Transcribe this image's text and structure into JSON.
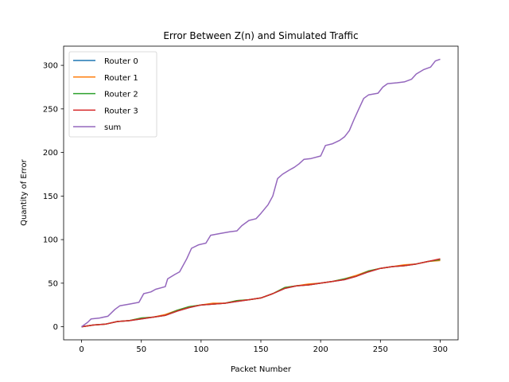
{
  "chart_data": {
    "type": "line",
    "title": "Error Between Z(n) and Simulated Traffic",
    "xlabel": "Packet Number",
    "ylabel": "Quantity of Error",
    "xlim": [
      -15,
      315
    ],
    "ylim": [
      -15,
      322
    ],
    "xticks": [
      0,
      50,
      100,
      150,
      200,
      250,
      300
    ],
    "yticks": [
      0,
      50,
      100,
      150,
      200,
      250,
      300
    ],
    "grid": false,
    "legend_position": "upper-left",
    "series": [
      {
        "name": "Router 0",
        "color": "#1f77b4",
        "points": [
          [
            0,
            0
          ],
          [
            10,
            2
          ],
          [
            20,
            3
          ],
          [
            30,
            6
          ],
          [
            40,
            7
          ],
          [
            50,
            9
          ],
          [
            60,
            11
          ],
          [
            70,
            13
          ],
          [
            80,
            18
          ],
          [
            90,
            22
          ],
          [
            100,
            25
          ],
          [
            110,
            26
          ],
          [
            120,
            27
          ],
          [
            130,
            29
          ],
          [
            140,
            31
          ],
          [
            150,
            33
          ],
          [
            160,
            38
          ],
          [
            170,
            44
          ],
          [
            180,
            47
          ],
          [
            190,
            48
          ],
          [
            200,
            50
          ],
          [
            210,
            52
          ],
          [
            220,
            54
          ],
          [
            230,
            58
          ],
          [
            240,
            63
          ],
          [
            250,
            67
          ],
          [
            260,
            69
          ],
          [
            270,
            70
          ],
          [
            280,
            72
          ],
          [
            290,
            75
          ],
          [
            300,
            77
          ]
        ]
      },
      {
        "name": "Router 1",
        "color": "#ff7f0e",
        "points": [
          [
            0,
            0
          ],
          [
            10,
            2
          ],
          [
            20,
            3
          ],
          [
            30,
            6
          ],
          [
            40,
            7
          ],
          [
            50,
            10
          ],
          [
            60,
            11
          ],
          [
            70,
            14
          ],
          [
            80,
            19
          ],
          [
            90,
            23
          ],
          [
            100,
            25
          ],
          [
            110,
            27
          ],
          [
            120,
            27
          ],
          [
            130,
            30
          ],
          [
            140,
            31
          ],
          [
            150,
            33
          ],
          [
            160,
            38
          ],
          [
            170,
            45
          ],
          [
            180,
            47
          ],
          [
            190,
            49
          ],
          [
            200,
            50
          ],
          [
            210,
            52
          ],
          [
            220,
            55
          ],
          [
            230,
            59
          ],
          [
            240,
            64
          ],
          [
            250,
            67
          ],
          [
            260,
            69
          ],
          [
            270,
            71
          ],
          [
            280,
            72
          ],
          [
            290,
            75
          ],
          [
            300,
            76
          ]
        ]
      },
      {
        "name": "Router 2",
        "color": "#2ca02c",
        "points": [
          [
            0,
            0
          ],
          [
            10,
            2
          ],
          [
            20,
            3
          ],
          [
            30,
            6
          ],
          [
            40,
            7
          ],
          [
            50,
            10
          ],
          [
            60,
            11
          ],
          [
            70,
            13
          ],
          [
            80,
            19
          ],
          [
            90,
            23
          ],
          [
            100,
            25
          ],
          [
            110,
            26
          ],
          [
            120,
            27
          ],
          [
            130,
            30
          ],
          [
            140,
            31
          ],
          [
            150,
            33
          ],
          [
            160,
            38
          ],
          [
            170,
            45
          ],
          [
            180,
            47
          ],
          [
            190,
            48
          ],
          [
            200,
            50
          ],
          [
            210,
            52
          ],
          [
            220,
            55
          ],
          [
            230,
            58
          ],
          [
            240,
            64
          ],
          [
            250,
            67
          ],
          [
            260,
            69
          ],
          [
            270,
            70
          ],
          [
            280,
            72
          ],
          [
            290,
            75
          ],
          [
            300,
            77
          ]
        ]
      },
      {
        "name": "Router 3",
        "color": "#d62728",
        "points": [
          [
            0,
            0
          ],
          [
            10,
            2
          ],
          [
            20,
            3
          ],
          [
            30,
            6
          ],
          [
            40,
            7
          ],
          [
            50,
            9
          ],
          [
            60,
            11
          ],
          [
            70,
            13
          ],
          [
            80,
            18
          ],
          [
            90,
            22
          ],
          [
            100,
            25
          ],
          [
            110,
            26
          ],
          [
            120,
            27
          ],
          [
            130,
            29
          ],
          [
            140,
            31
          ],
          [
            150,
            33
          ],
          [
            160,
            38
          ],
          [
            170,
            44
          ],
          [
            180,
            47
          ],
          [
            190,
            48
          ],
          [
            200,
            50
          ],
          [
            210,
            52
          ],
          [
            220,
            54
          ],
          [
            230,
            58
          ],
          [
            240,
            63
          ],
          [
            250,
            67
          ],
          [
            260,
            69
          ],
          [
            270,
            70
          ],
          [
            280,
            72
          ],
          [
            290,
            75
          ],
          [
            300,
            78
          ]
        ]
      },
      {
        "name": "sum",
        "color": "#9467bd",
        "points": [
          [
            0,
            0
          ],
          [
            5,
            5
          ],
          [
            8,
            9
          ],
          [
            15,
            10
          ],
          [
            22,
            12
          ],
          [
            28,
            20
          ],
          [
            32,
            24
          ],
          [
            40,
            26
          ],
          [
            48,
            28
          ],
          [
            52,
            38
          ],
          [
            58,
            40
          ],
          [
            62,
            43
          ],
          [
            70,
            46
          ],
          [
            72,
            55
          ],
          [
            78,
            60
          ],
          [
            82,
            63
          ],
          [
            88,
            78
          ],
          [
            92,
            90
          ],
          [
            98,
            94
          ],
          [
            104,
            96
          ],
          [
            108,
            105
          ],
          [
            116,
            107
          ],
          [
            124,
            109
          ],
          [
            130,
            110
          ],
          [
            134,
            116
          ],
          [
            140,
            122
          ],
          [
            146,
            124
          ],
          [
            150,
            130
          ],
          [
            156,
            140
          ],
          [
            160,
            150
          ],
          [
            164,
            170
          ],
          [
            168,
            175
          ],
          [
            174,
            180
          ],
          [
            178,
            183
          ],
          [
            182,
            187
          ],
          [
            186,
            192
          ],
          [
            192,
            193
          ],
          [
            200,
            196
          ],
          [
            204,
            208
          ],
          [
            210,
            210
          ],
          [
            216,
            214
          ],
          [
            220,
            218
          ],
          [
            224,
            225
          ],
          [
            228,
            238
          ],
          [
            232,
            250
          ],
          [
            236,
            262
          ],
          [
            240,
            266
          ],
          [
            248,
            268
          ],
          [
            252,
            275
          ],
          [
            256,
            279
          ],
          [
            264,
            280
          ],
          [
            270,
            281
          ],
          [
            276,
            284
          ],
          [
            280,
            290
          ],
          [
            286,
            295
          ],
          [
            292,
            298
          ],
          [
            296,
            305
          ],
          [
            300,
            307
          ]
        ]
      }
    ]
  }
}
